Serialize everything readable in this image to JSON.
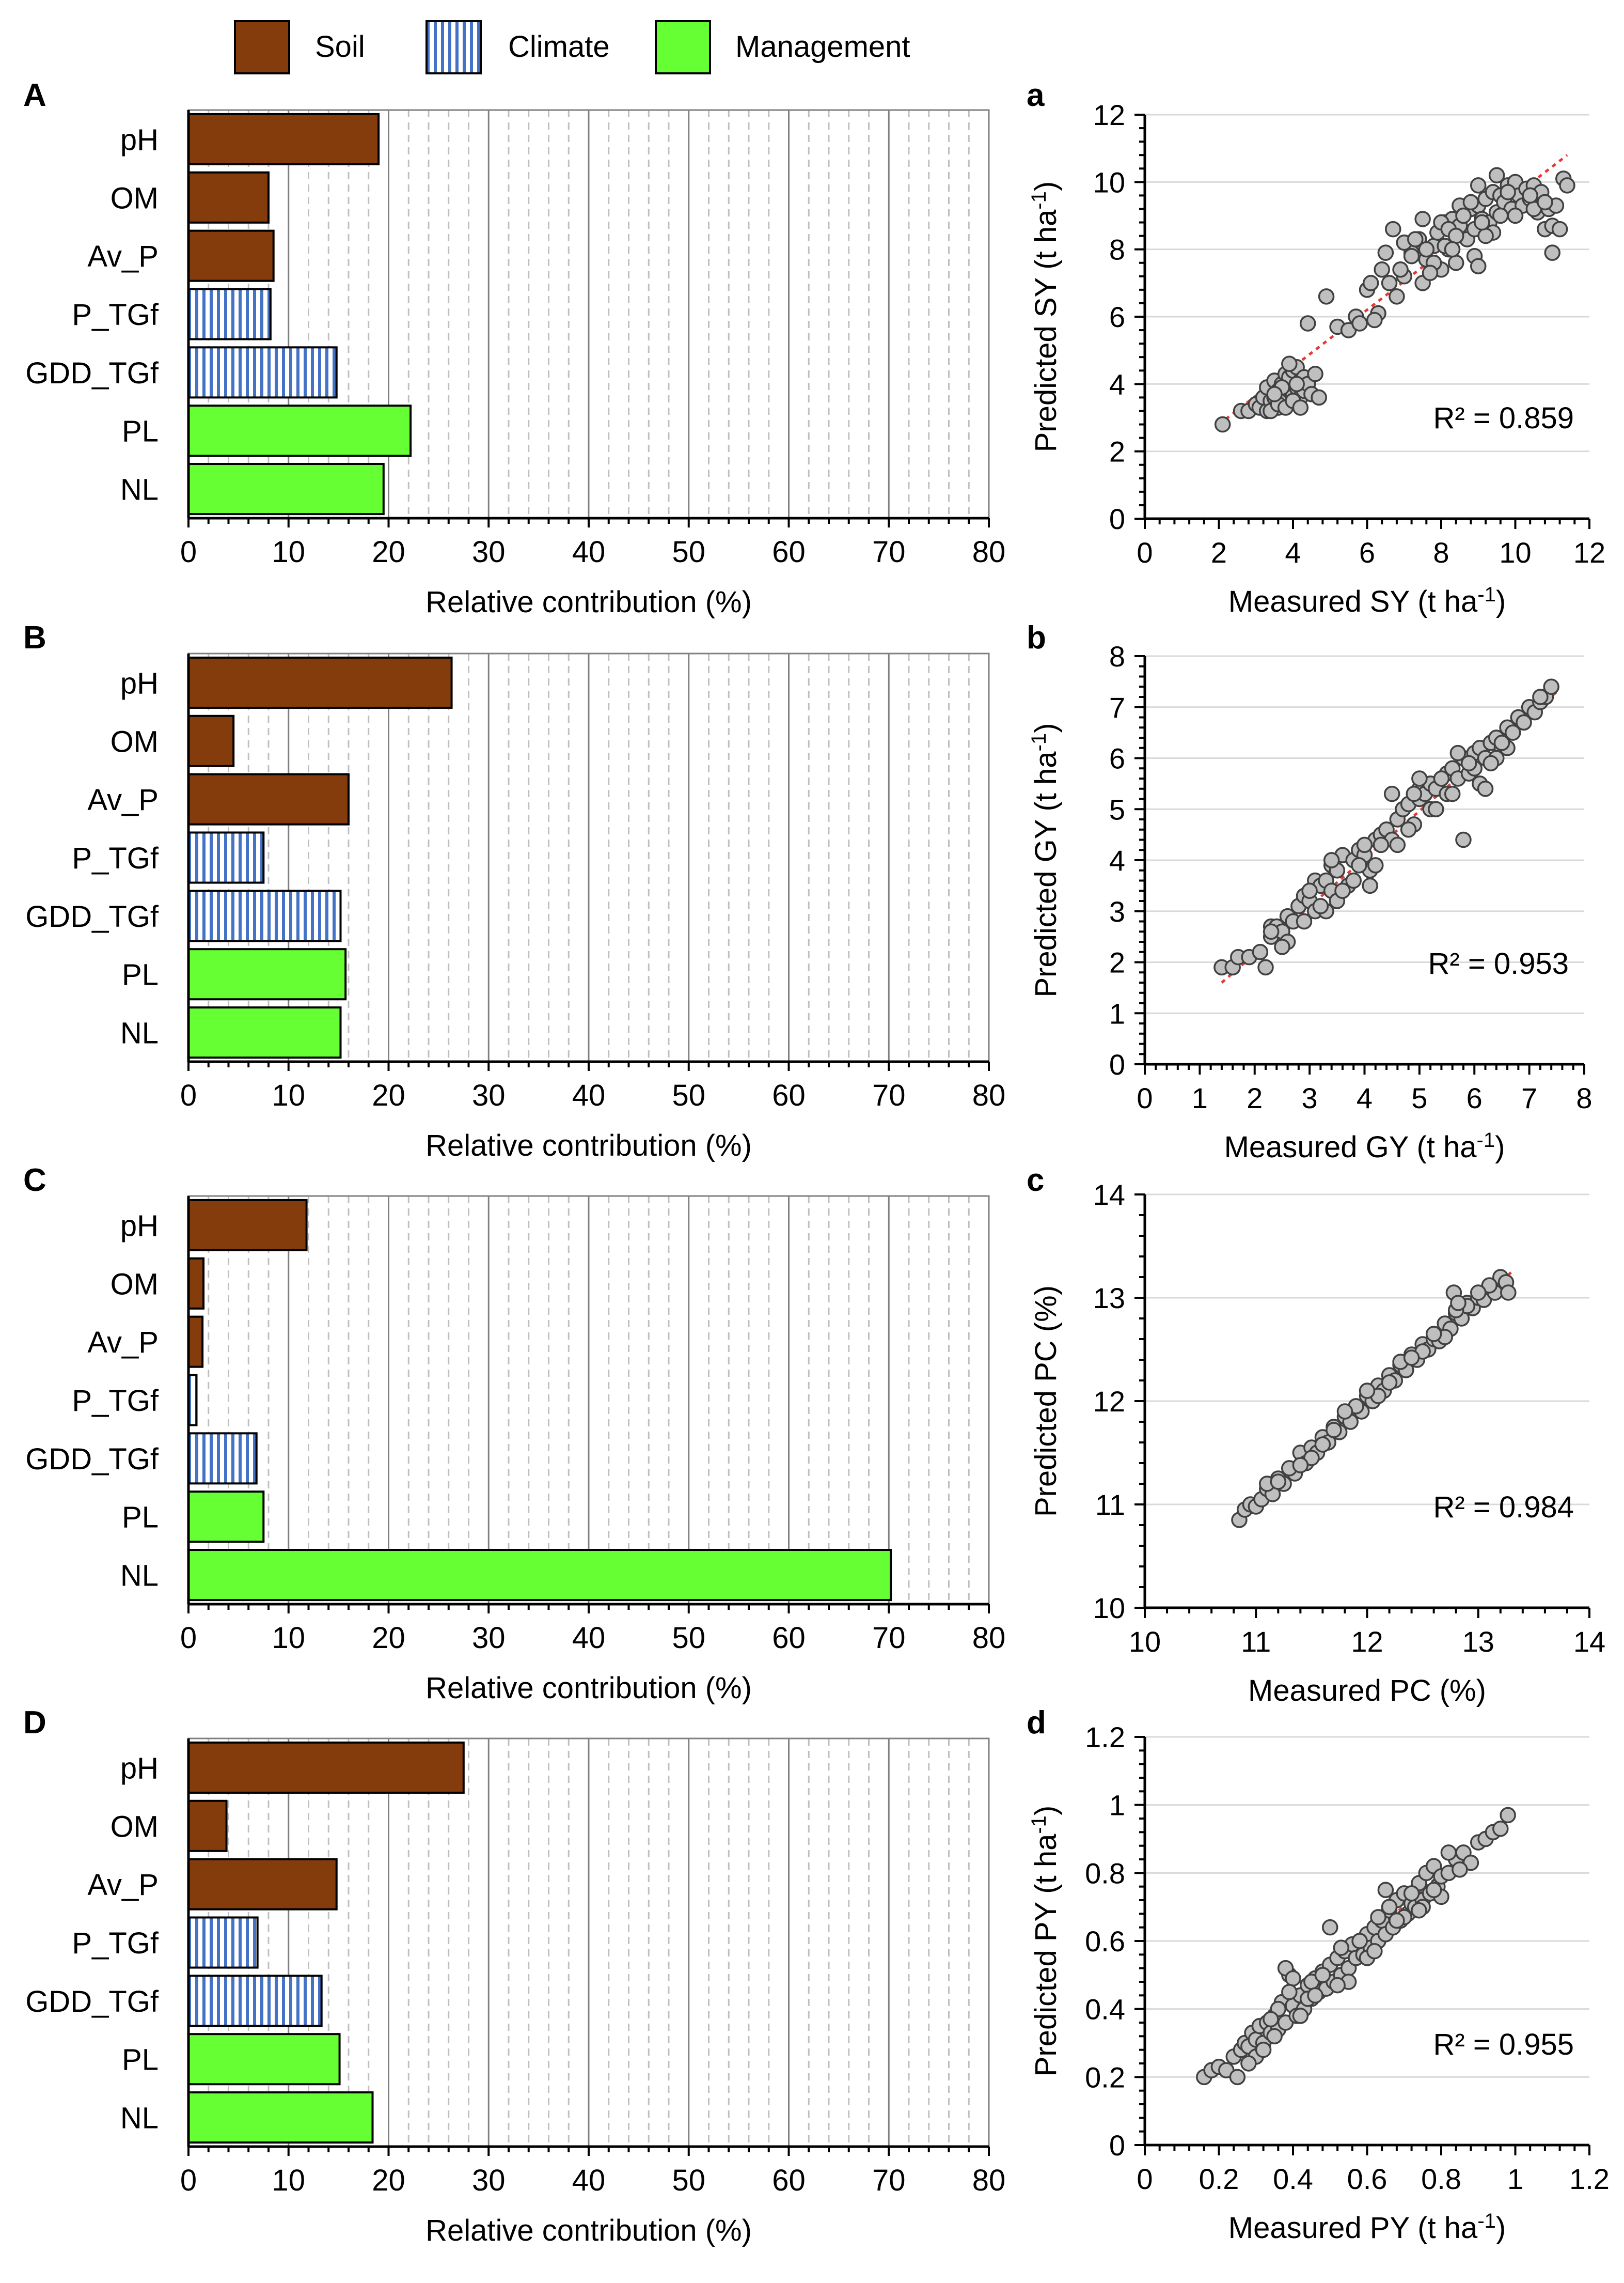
{
  "legend": {
    "items": [
      {
        "label": "Soil",
        "pattern": "soil"
      },
      {
        "label": "Climate",
        "pattern": "climate"
      },
      {
        "label": "Management",
        "pattern": "management"
      }
    ]
  },
  "colors": {
    "soil": "#843C0C",
    "climate_stripe": "#4472C4",
    "climate_bg": "#FFFFFF",
    "management": "#66FF33",
    "scatter_fill": "#BFBFBF",
    "trendline": "#E53935",
    "grid_major": "#808080",
    "grid_minor": "#BFBFBF"
  },
  "chart_data": [
    {
      "panel": "A",
      "type": "bar",
      "orientation": "horizontal",
      "categories": [
        "pH",
        "OM",
        "Av_P",
        "P_TGf",
        "GDD_TGf",
        "PL",
        "NL"
      ],
      "groups": [
        "soil",
        "soil",
        "soil",
        "climate",
        "climate",
        "management",
        "management"
      ],
      "values": [
        19,
        8,
        8.5,
        8.2,
        14.8,
        22.2,
        19.5
      ],
      "xlabel": "Relative contribution (%)",
      "xlim": [
        0,
        80
      ],
      "ticks": [
        "0",
        "10",
        "20",
        "30",
        "40",
        "50",
        "60",
        "70",
        "80"
      ]
    },
    {
      "panel": "a",
      "type": "scatter",
      "xlabel": "Measured SY (t ha",
      "xlabel_sup": "-1",
      "xlabel_end": ")",
      "ylabel": "Predicted SY (t ha",
      "ylabel_sup": "-1",
      "ylabel_end": ")",
      "xlim": [
        0,
        12
      ],
      "ylim": [
        0,
        12
      ],
      "xticks": [
        "0",
        "2",
        "4",
        "6",
        "8",
        "10",
        "12"
      ],
      "yticks": [
        "0",
        "2",
        "4",
        "6",
        "8",
        "10",
        "12"
      ],
      "r2_label": "R² = 0.859",
      "trend": {
        "x": [
          2.0,
          11.4
        ],
        "y": [
          2.8,
          10.8
        ]
      },
      "points": {
        "x": [
          2.1,
          2.6,
          2.8,
          3.0,
          3.1,
          3.2,
          3.3,
          3.3,
          3.4,
          3.5,
          3.5,
          3.6,
          3.6,
          3.7,
          3.7,
          3.8,
          3.8,
          3.9,
          3.9,
          4.0,
          4.0,
          4.1,
          4.1,
          4.2,
          4.2,
          4.3,
          4.3,
          4.4,
          4.5,
          4.6,
          4.7,
          3.4,
          3.6,
          3.8,
          4.0,
          4.2,
          3.9,
          4.1,
          3.7,
          3.5,
          4.4,
          4.9,
          5.2,
          5.5,
          5.7,
          6.0,
          6.1,
          6.3,
          6.4,
          6.6,
          6.8,
          7.0,
          6.7,
          7.2,
          7.4,
          7.5,
          7.6,
          7.8,
          7.9,
          8.0,
          8.1,
          8.2,
          8.3,
          8.4,
          8.5,
          8.6,
          8.7,
          8.8,
          8.9,
          9.0,
          9.1,
          9.2,
          9.3,
          9.4,
          9.5,
          9.6,
          9.7,
          9.8,
          9.9,
          10.0,
          10.1,
          10.2,
          10.3,
          10.4,
          10.5,
          10.6,
          10.7,
          10.8,
          10.9,
          11.0,
          11.1,
          11.2,
          11.3,
          11.4,
          7.0,
          7.5,
          8.0,
          8.5,
          9.0,
          9.5,
          10.0,
          10.5,
          8.2,
          8.8,
          9.4,
          7.6,
          8.6,
          9.2,
          9.8,
          10.4,
          6.5,
          7.3,
          8.1,
          8.9,
          7.8,
          9.6,
          10.8,
          11.0,
          9.0,
          8.4,
          7.2,
          6.2,
          5.8,
          6.9,
          7.7,
          8.3,
          9.1
        ],
        "y": [
          2.8,
          3.2,
          3.2,
          3.4,
          3.3,
          3.6,
          3.2,
          3.9,
          3.5,
          3.6,
          4.1,
          3.8,
          3.3,
          4.0,
          3.6,
          4.3,
          3.5,
          4.2,
          3.8,
          4.4,
          3.7,
          3.9,
          4.5,
          4.1,
          3.6,
          4.2,
          3.8,
          4.0,
          3.7,
          4.3,
          3.6,
          3.2,
          3.4,
          3.3,
          3.5,
          3.3,
          4.6,
          4.0,
          3.9,
          3.7,
          5.8,
          6.6,
          5.7,
          5.6,
          6.0,
          6.8,
          7.0,
          6.1,
          7.4,
          7.0,
          6.6,
          7.2,
          8.6,
          7.9,
          8.3,
          7.0,
          7.7,
          8.1,
          8.5,
          7.4,
          8.8,
          8.0,
          8.9,
          7.6,
          8.7,
          9.0,
          8.3,
          9.2,
          8.6,
          9.3,
          8.9,
          9.5,
          8.8,
          9.7,
          9.1,
          9.6,
          9.4,
          9.9,
          9.2,
          10.0,
          9.6,
          9.3,
          9.8,
          9.5,
          9.9,
          9.1,
          9.7,
          8.6,
          9.2,
          8.7,
          9.3,
          8.6,
          10.1,
          9.9,
          8.2,
          8.9,
          8.8,
          9.3,
          9.9,
          10.2,
          9.0,
          9.2,
          8.6,
          9.4,
          8.5,
          8.0,
          9.0,
          8.4,
          9.7,
          9.6,
          7.9,
          8.3,
          8.1,
          7.8,
          7.6,
          9.0,
          9.4,
          7.9,
          7.5,
          8.4,
          7.8,
          5.9,
          5.8,
          7.4,
          7.3,
          8.0,
          8.8
        ]
      }
    },
    {
      "panel": "B",
      "type": "bar",
      "orientation": "horizontal",
      "categories": [
        "pH",
        "OM",
        "Av_P",
        "P_TGf",
        "GDD_TGf",
        "PL",
        "NL"
      ],
      "groups": [
        "soil",
        "soil",
        "soil",
        "climate",
        "climate",
        "management",
        "management"
      ],
      "values": [
        26.3,
        4.5,
        16,
        7.5,
        15.2,
        15.7,
        15.2
      ],
      "xlabel": "Relative contribution (%)",
      "xlim": [
        0,
        80
      ],
      "ticks": [
        "0",
        "10",
        "20",
        "30",
        "40",
        "50",
        "60",
        "70",
        "80"
      ]
    },
    {
      "panel": "b",
      "type": "scatter",
      "xlabel": "Measured GY (t ha",
      "xlabel_sup": "-1",
      "xlabel_end": ")",
      "ylabel": "Predicted GY (t ha",
      "ylabel_sup": "-1",
      "ylabel_end": ")",
      "xlim": [
        0,
        8
      ],
      "ylim": [
        0,
        8
      ],
      "xticks": [
        "0",
        "1",
        "2",
        "3",
        "4",
        "5",
        "6",
        "7",
        "8"
      ],
      "yticks": [
        "0",
        "1",
        "2",
        "3",
        "4",
        "5",
        "6",
        "7",
        "8"
      ],
      "r2_label": "R² = 0.953",
      "trend": {
        "x": [
          1.4,
          7.5
        ],
        "y": [
          1.6,
          7.3
        ]
      },
      "points": {
        "x": [
          1.4,
          1.6,
          1.7,
          1.9,
          2.1,
          2.2,
          2.3,
          2.3,
          2.4,
          2.5,
          2.6,
          2.7,
          2.8,
          2.9,
          3.0,
          3.1,
          3.1,
          3.2,
          3.3,
          3.4,
          3.4,
          3.5,
          3.6,
          3.7,
          3.8,
          3.8,
          3.9,
          4.0,
          4.1,
          4.2,
          4.2,
          4.3,
          4.4,
          4.5,
          4.6,
          4.7,
          4.8,
          4.9,
          5.0,
          5.0,
          5.1,
          5.2,
          5.3,
          5.4,
          5.5,
          5.5,
          5.6,
          5.7,
          5.8,
          5.9,
          6.0,
          6.0,
          6.1,
          6.2,
          6.3,
          6.4,
          6.5,
          6.6,
          6.7,
          6.8,
          6.9,
          7.0,
          7.1,
          7.2,
          7.3,
          7.4,
          2.6,
          3.0,
          3.5,
          4.1,
          4.5,
          5.2,
          5.6,
          6.1,
          6.6,
          3.3,
          3.9,
          4.6,
          5.3,
          5.9,
          6.4,
          2.3,
          2.9,
          3.6,
          4.8,
          5.4,
          6.2,
          6.9,
          3.4,
          4.3,
          5.0,
          5.7,
          6.3,
          2.5,
          3.2,
          4.0,
          4.9,
          5.8,
          6.5,
          7.2
        ],
        "y": [
          1.9,
          1.9,
          2.1,
          2.1,
          2.2,
          1.9,
          2.5,
          2.7,
          2.7,
          2.6,
          2.9,
          2.8,
          3.1,
          3.3,
          3.2,
          3.6,
          3.0,
          3.5,
          3.6,
          3.9,
          3.4,
          3.8,
          4.1,
          3.5,
          4.0,
          3.6,
          4.2,
          4.1,
          3.8,
          4.4,
          3.9,
          4.5,
          4.6,
          4.4,
          4.8,
          5.0,
          5.1,
          4.7,
          5.2,
          5.4,
          5.3,
          5.5,
          5.4,
          5.6,
          5.7,
          5.3,
          5.8,
          5.6,
          6.0,
          5.7,
          6.1,
          5.8,
          6.2,
          6.0,
          6.3,
          6.4,
          6.2,
          6.6,
          6.5,
          6.8,
          6.7,
          7.0,
          6.9,
          7.1,
          7.2,
          7.4,
          2.4,
          3.4,
          3.2,
          3.5,
          5.3,
          5.0,
          5.3,
          5.5,
          6.2,
          3.0,
          3.9,
          4.3,
          5.0,
          5.9,
          6.0,
          2.6,
          2.8,
          3.4,
          4.6,
          5.6,
          5.4,
          6.7,
          4.0,
          4.3,
          5.6,
          6.1,
          5.9,
          2.3,
          3.1,
          4.3,
          5.3,
          4.4,
          6.3,
          7.2
        ]
      }
    },
    {
      "panel": "C",
      "type": "bar",
      "orientation": "horizontal",
      "categories": [
        "pH",
        "OM",
        "Av_P",
        "P_TGf",
        "GDD_TGf",
        "PL",
        "NL"
      ],
      "groups": [
        "soil",
        "soil",
        "soil",
        "climate",
        "climate",
        "management",
        "management"
      ],
      "values": [
        11.8,
        1.5,
        1.4,
        0.8,
        6.8,
        7.5,
        70.2
      ],
      "xlabel": "Relative contribution (%)",
      "xlim": [
        0,
        80
      ],
      "ticks": [
        "0",
        "10",
        "20",
        "30",
        "40",
        "50",
        "60",
        "70",
        "80"
      ]
    },
    {
      "panel": "c",
      "type": "scatter",
      "xlabel": "Measured PC (%)",
      "xlabel_sup": "",
      "xlabel_end": "",
      "ylabel": "Predicted PC (%)",
      "ylabel_sup": "",
      "ylabel_end": "",
      "xlim": [
        10,
        14
      ],
      "ylim": [
        10,
        14
      ],
      "xticks": [
        "10",
        "11",
        "12",
        "13",
        "14"
      ],
      "yticks": [
        "10",
        "11",
        "12",
        "13",
        "14"
      ],
      "r2_label": "R² = 0.984",
      "trend": {
        "x": [
          10.85,
          13.3
        ],
        "y": [
          10.9,
          13.25
        ]
      },
      "points": {
        "x": [
          10.85,
          10.9,
          10.95,
          11.0,
          11.05,
          11.1,
          11.15,
          11.2,
          11.25,
          11.3,
          11.35,
          11.4,
          11.45,
          11.5,
          11.55,
          11.6,
          11.65,
          11.7,
          11.75,
          11.8,
          11.85,
          11.9,
          11.95,
          12.0,
          12.05,
          12.1,
          12.15,
          12.2,
          12.25,
          12.3,
          12.35,
          12.4,
          12.45,
          12.5,
          12.55,
          12.6,
          12.65,
          12.7,
          12.75,
          12.8,
          12.85,
          12.9,
          12.95,
          13.0,
          13.05,
          13.1,
          13.15,
          13.2,
          13.25,
          11.1,
          11.3,
          11.5,
          11.7,
          11.9,
          12.1,
          12.3,
          12.5,
          12.7,
          12.9,
          13.1,
          11.2,
          11.6,
          12.0,
          12.4,
          12.8,
          11.4,
          11.8,
          12.2,
          12.6,
          13.0,
          12.78,
          12.82,
          13.27
        ],
        "y": [
          10.85,
          10.95,
          11.0,
          10.98,
          11.05,
          11.15,
          11.1,
          11.25,
          11.2,
          11.35,
          11.3,
          11.5,
          11.4,
          11.55,
          11.5,
          11.65,
          11.6,
          11.75,
          11.7,
          11.85,
          11.8,
          11.95,
          11.9,
          12.05,
          12.0,
          12.15,
          12.1,
          12.25,
          12.2,
          12.35,
          12.3,
          12.45,
          12.4,
          12.55,
          12.5,
          12.6,
          12.58,
          12.75,
          12.7,
          12.85,
          12.8,
          12.95,
          12.9,
          13.0,
          12.98,
          13.1,
          13.05,
          13.2,
          13.15,
          11.2,
          11.35,
          11.45,
          11.72,
          11.95,
          12.05,
          12.38,
          12.48,
          12.62,
          12.92,
          13.12,
          11.22,
          11.58,
          12.1,
          12.42,
          12.88,
          11.38,
          11.9,
          12.18,
          12.65,
          13.05,
          13.05,
          12.95,
          13.05
        ]
      }
    },
    {
      "panel": "D",
      "type": "bar",
      "orientation": "horizontal",
      "categories": [
        "pH",
        "OM",
        "Av_P",
        "P_TGf",
        "GDD_TGf",
        "PL",
        "NL"
      ],
      "groups": [
        "soil",
        "soil",
        "soil",
        "climate",
        "climate",
        "management",
        "management"
      ],
      "values": [
        27.5,
        3.8,
        14.8,
        6.9,
        13.3,
        15.1,
        18.4
      ],
      "xlabel": "Relative contribution (%)",
      "xlim": [
        0,
        80
      ],
      "ticks": [
        "0",
        "10",
        "20",
        "30",
        "40",
        "50",
        "60",
        "70",
        "80"
      ]
    },
    {
      "panel": "d",
      "type": "scatter",
      "xlabel": "Measured PY (t ha",
      "xlabel_sup": "-1",
      "xlabel_end": ")",
      "ylabel": "Predicted PY (t ha",
      "ylabel_sup": "-1",
      "ylabel_end": ")",
      "xlim": [
        0,
        1.2
      ],
      "ylim": [
        0,
        1.2
      ],
      "xticks": [
        "0",
        "0.2",
        "0.4",
        "0.6",
        "0.8",
        "1",
        "1.2"
      ],
      "yticks": [
        "0",
        "0.2",
        "0.4",
        "0.6",
        "0.8",
        "1",
        "1.2"
      ],
      "r2_label": "R² = 0.955",
      "trend": {
        "x": [
          0.15,
          0.97
        ],
        "y": [
          0.18,
          0.96
        ]
      },
      "points": {
        "x": [
          0.16,
          0.18,
          0.2,
          0.22,
          0.24,
          0.25,
          0.26,
          0.27,
          0.28,
          0.29,
          0.3,
          0.31,
          0.32,
          0.33,
          0.34,
          0.35,
          0.36,
          0.37,
          0.38,
          0.39,
          0.4,
          0.41,
          0.42,
          0.43,
          0.44,
          0.45,
          0.46,
          0.47,
          0.48,
          0.49,
          0.5,
          0.51,
          0.52,
          0.53,
          0.54,
          0.55,
          0.56,
          0.57,
          0.58,
          0.59,
          0.6,
          0.61,
          0.62,
          0.63,
          0.64,
          0.65,
          0.66,
          0.67,
          0.68,
          0.69,
          0.7,
          0.71,
          0.72,
          0.73,
          0.74,
          0.75,
          0.76,
          0.77,
          0.78,
          0.79,
          0.8,
          0.82,
          0.84,
          0.86,
          0.88,
          0.9,
          0.92,
          0.94,
          0.96,
          0.98,
          0.3,
          0.35,
          0.38,
          0.4,
          0.42,
          0.45,
          0.5,
          0.55,
          0.6,
          0.65,
          0.7,
          0.75,
          0.8,
          0.85,
          0.32,
          0.36,
          0.44,
          0.48,
          0.52,
          0.58,
          0.62,
          0.68,
          0.72,
          0.78,
          0.82,
          0.28,
          0.34,
          0.39,
          0.46,
          0.53,
          0.63,
          0.66,
          0.74
        ],
        "y": [
          0.2,
          0.22,
          0.23,
          0.22,
          0.26,
          0.2,
          0.28,
          0.3,
          0.29,
          0.33,
          0.31,
          0.35,
          0.3,
          0.36,
          0.33,
          0.38,
          0.34,
          0.42,
          0.36,
          0.5,
          0.41,
          0.38,
          0.44,
          0.4,
          0.47,
          0.43,
          0.49,
          0.45,
          0.51,
          0.46,
          0.53,
          0.48,
          0.55,
          0.5,
          0.57,
          0.52,
          0.59,
          0.55,
          0.6,
          0.56,
          0.62,
          0.58,
          0.64,
          0.6,
          0.66,
          0.62,
          0.69,
          0.64,
          0.72,
          0.66,
          0.74,
          0.68,
          0.71,
          0.7,
          0.77,
          0.72,
          0.8,
          0.74,
          0.82,
          0.76,
          0.79,
          0.8,
          0.84,
          0.86,
          0.83,
          0.89,
          0.9,
          0.92,
          0.93,
          0.97,
          0.26,
          0.32,
          0.52,
          0.49,
          0.38,
          0.48,
          0.64,
          0.48,
          0.55,
          0.75,
          0.67,
          0.7,
          0.73,
          0.81,
          0.28,
          0.4,
          0.43,
          0.5,
          0.47,
          0.6,
          0.57,
          0.66,
          0.74,
          0.75,
          0.86,
          0.24,
          0.37,
          0.45,
          0.44,
          0.58,
          0.67,
          0.7,
          0.69
        ]
      }
    }
  ]
}
